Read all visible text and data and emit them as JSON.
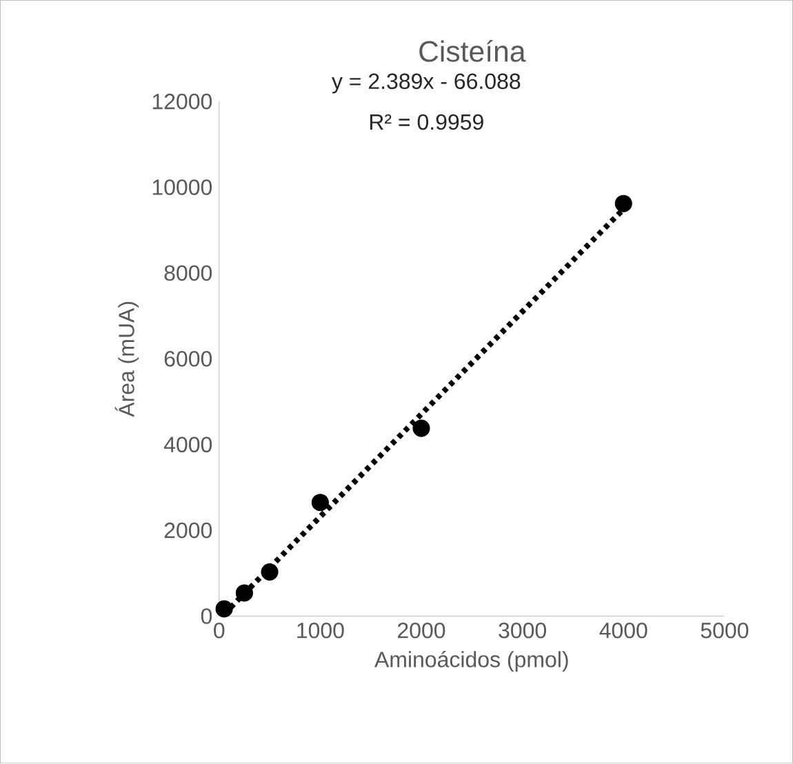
{
  "chart_data": {
    "type": "scatter",
    "title": "Cisteína",
    "xlabel": "Aminoácidos (pmol)",
    "ylabel": "Área (mUA)",
    "annotations": [
      "y = 2.389x - 66.088",
      "R² = 0.9959"
    ],
    "series": [
      {
        "x": [
          50,
          250,
          500,
          1000,
          2000,
          4000
        ],
        "values": [
          170,
          540,
          1030,
          2650,
          4380,
          9620
        ],
        "color": "#000000",
        "marker": "circle"
      },
      {
        "type": "line",
        "x": [
          50,
          4000
        ],
        "values": [
          50,
          9490
        ],
        "color": "#000000",
        "line_style": "dotted",
        "marker": "none"
      }
    ],
    "xlim": [
      0,
      5000
    ],
    "ylim": [
      0,
      12000
    ],
    "xticks": [
      0,
      1000,
      2000,
      3000,
      4000,
      5000
    ],
    "yticks": [
      0,
      2000,
      4000,
      6000,
      8000,
      10000,
      12000
    ]
  }
}
